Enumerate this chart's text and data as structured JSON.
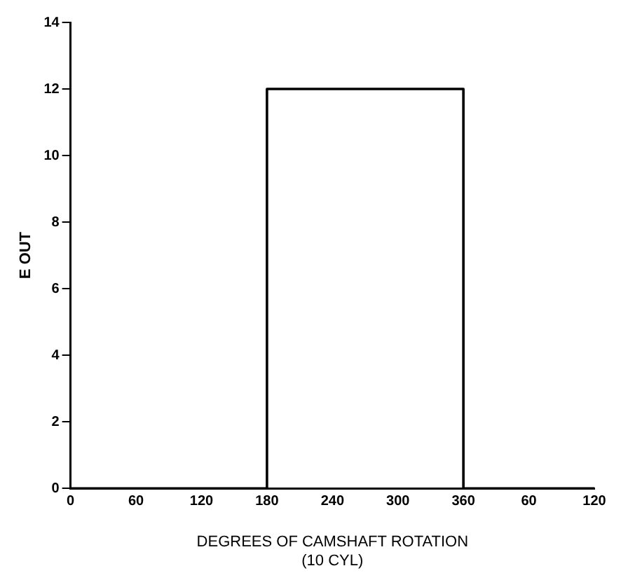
{
  "chart_data": {
    "type": "step",
    "xlabel": "DEGREES OF CAMSHAFT ROTATION\n(10 CYL)",
    "ylabel": "E OUT",
    "categories": [
      "0",
      "60",
      "120",
      "180",
      "240",
      "300",
      "360",
      "60",
      "120"
    ],
    "series": [
      {
        "color": "#000000",
        "values": [
          0,
          0,
          0,
          12,
          12,
          12,
          0,
          0,
          0
        ]
      }
    ],
    "ylim": [
      0,
      14
    ],
    "yticks": [
      0,
      2,
      4,
      6,
      8,
      10,
      12,
      14
    ],
    "grid": false,
    "legend": false,
    "marker": "none",
    "line_style": "solid"
  }
}
